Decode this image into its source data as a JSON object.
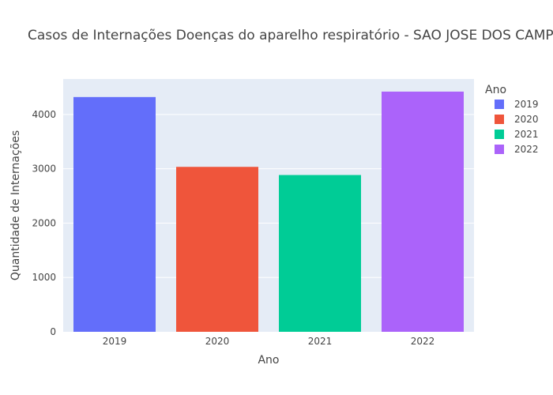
{
  "chart_data": {
    "type": "bar",
    "title": "Casos de Internações Doenças do aparelho respiratório - SAO JOSE DOS CAMPOS",
    "xlabel": "Ano",
    "ylabel": "Quantidade de Internações",
    "categories": [
      "2019",
      "2020",
      "2021",
      "2022"
    ],
    "values": [
      4320,
      3035,
      2885,
      4420
    ],
    "colors": [
      "#636efa",
      "#ef553b",
      "#00cc96",
      "#ab63fa"
    ],
    "yticks": [
      0,
      1000,
      2000,
      3000,
      4000
    ],
    "ylim": [
      0,
      4652
    ],
    "grid": true,
    "legend": {
      "title": "Ano",
      "position": "right",
      "items": [
        "2019",
        "2020",
        "2021",
        "2022"
      ]
    },
    "plot_background": "#e5ecf6"
  }
}
